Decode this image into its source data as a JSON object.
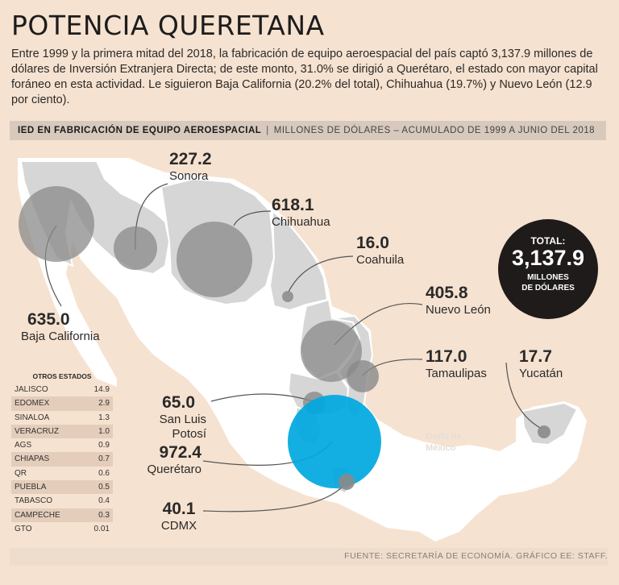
{
  "title": "POTENCIA QUERETANA",
  "intro": "Entre 1999 y la primera mitad del 2018, la fabricación de equipo aeroespacial del país captó 3,137.9 millones de dólares de Inversión Extranjera Directa; de este monto, 31.0% se dirigió a Querétaro, el estado con mayor capital foráneo en esta actividad. Le siguieron Baja California (20.2% del total), Chihuahua (19.7%) y Nuevo León (12.9 por ciento).",
  "section": {
    "strong": "IED EN FABRICACIÓN DE EQUIPO AEROESPACIAL",
    "sep": "|",
    "light": "MILLONES DE DÓLARES – ACUMULADO DE 1999 A JUNIO DEL 2018"
  },
  "states": [
    {
      "name": "Sonora",
      "value": "227.2"
    },
    {
      "name": "Chihuahua",
      "value": "618.1"
    },
    {
      "name": "Coahuila",
      "value": "16.0"
    },
    {
      "name": "Nuevo León",
      "value": "405.8"
    },
    {
      "name": "Tamaulipas",
      "value": "117.0"
    },
    {
      "name": "Yucatán",
      "value": "17.7"
    },
    {
      "name": "Baja California",
      "value": "635.0"
    },
    {
      "name": "San Luis Potosí",
      "value": "65.0"
    },
    {
      "name": "Querétaro",
      "value": "972.4"
    },
    {
      "name": "CDMX",
      "value": "40.1"
    }
  ],
  "total": {
    "label": "TOTAL:",
    "value": "3,137.9",
    "unit_line1": "MILLONES",
    "unit_line2": "DE DÓLARES"
  },
  "gulf": {
    "line1": "Golfo de",
    "line2": "México"
  },
  "others": {
    "title": "OTROS ESTADOS",
    "rows": [
      {
        "name": "JALISCO",
        "value": "14.9"
      },
      {
        "name": "EDOMEX",
        "value": "2.9"
      },
      {
        "name": "SINALOA",
        "value": "1.3"
      },
      {
        "name": "VERACRUZ",
        "value": "1.0"
      },
      {
        "name": "AGS",
        "value": "0.9"
      },
      {
        "name": "CHIAPAS",
        "value": "0.7"
      },
      {
        "name": "QR",
        "value": "0.6"
      },
      {
        "name": "PUEBLA",
        "value": "0.5"
      },
      {
        "name": "TABASCO",
        "value": "0.4"
      },
      {
        "name": "CAMPECHE",
        "value": "0.3"
      },
      {
        "name": "GTO",
        "value": "0.01"
      }
    ]
  },
  "source": "FUENTE: SECRETARÍA DE ECONOMÍA. GRÁFICO EE: STAFF.",
  "colors": {
    "background": "#f6e2d0",
    "land": "#ffffff",
    "highlight_states": "#d6d6d6",
    "bubble": "#8a8a8a",
    "queretaro": "#00a8e0",
    "total_bg": "#1f1b1b"
  }
}
